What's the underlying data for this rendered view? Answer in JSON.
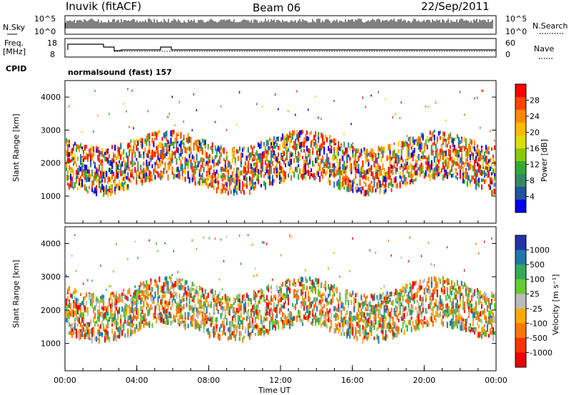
{
  "header": {
    "station": "Inuvik (fitACF)",
    "beam": "Beam 06",
    "date": "22/Sep/2011"
  },
  "top_panels": {
    "nsky_label": "N.Sky",
    "nsky_ticks": [
      "10^5",
      "10^0"
    ],
    "nsearch_label": "N.Search",
    "nsearch_ticks": [
      "10^5",
      "10^0"
    ],
    "freq_label_line1": "Freq.",
    "freq_label_line2": "[MHz]",
    "freq_ticks": [
      "18",
      "8"
    ],
    "nave_label": "Nave",
    "nave_ticks": [
      "60",
      "0"
    ],
    "cpid_label": "CPID",
    "cpid_value": "normalsound (fast) 157"
  },
  "chart_data": [
    {
      "type": "heatmap",
      "panel": "power",
      "ylabel": "Slant Range [km]",
      "yticks": [
        "1000",
        "2000",
        "3000",
        "4000"
      ],
      "ylim": [
        180,
        4500
      ],
      "xlim": [
        0,
        24
      ],
      "colorbar_label": "Power [dB]",
      "colorbar_ticks": [
        "28",
        "24",
        "20",
        "16",
        "12",
        "8",
        "4"
      ],
      "colorbar_colors": [
        "#ff0000",
        "#ff4400",
        "#ff8800",
        "#ffbb00",
        "#dddd00",
        "#88cc00",
        "#33aa33",
        "#338866",
        "#225599",
        "#0000ee"
      ],
      "scatter_palette": [
        "#ff0000",
        "#ff3300",
        "#ff6600",
        "#ff9900",
        "#ffcc00",
        "#33aa33",
        "#2277aa",
        "#0000ee"
      ]
    },
    {
      "type": "heatmap",
      "panel": "velocity",
      "ylabel": "Slant Range [km]",
      "yticks": [
        "1000",
        "2000",
        "3000",
        "4000"
      ],
      "ylim": [
        180,
        4500
      ],
      "xlim": [
        0,
        24
      ],
      "xlabel": "Time UT",
      "xticks": [
        "00:00",
        "04:00",
        "08:00",
        "12:00",
        "16:00",
        "20:00",
        "00:00"
      ],
      "colorbar_label": "Velocity [m s⁻¹]",
      "colorbar_ticks": [
        "1000",
        "500",
        "100",
        "25",
        "-25",
        "-100",
        "-500",
        "-1000"
      ],
      "colorbar_colors": [
        "#2233aa",
        "#2277aa",
        "#33aa55",
        "#66cc33",
        "#bbbbbb",
        "#ffaa00",
        "#ff7700",
        "#ff3300",
        "#ee0000"
      ],
      "scatter_palette": [
        "#ff8800",
        "#ff6600",
        "#ffaa00",
        "#bbbbbb",
        "#66cc33",
        "#33aa55",
        "#2277aa",
        "#ee0000"
      ]
    }
  ]
}
